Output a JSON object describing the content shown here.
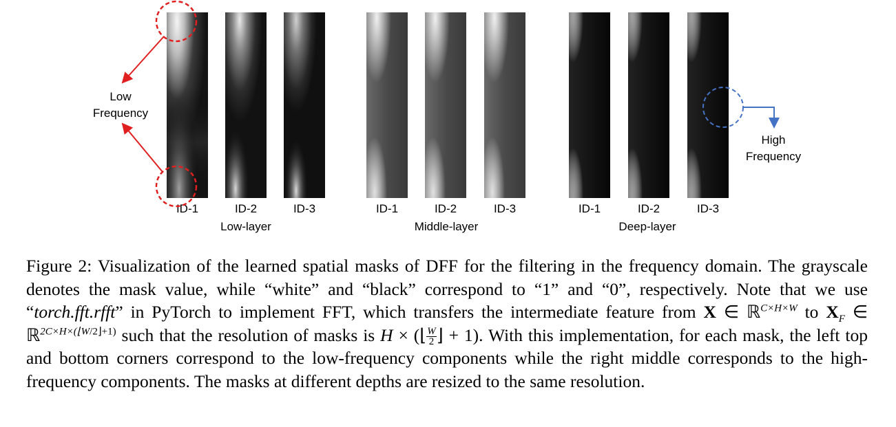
{
  "figure": {
    "groups": [
      {
        "label": "Low-layer",
        "masks": [
          {
            "id": "ID-1",
            "style": "low-1"
          },
          {
            "id": "ID-2",
            "style": "low-2"
          },
          {
            "id": "ID-3",
            "style": "low-3"
          }
        ]
      },
      {
        "label": "Middle-layer",
        "masks": [
          {
            "id": "ID-1",
            "style": "mid"
          },
          {
            "id": "ID-2",
            "style": "mid"
          },
          {
            "id": "ID-3",
            "style": "mid"
          }
        ]
      },
      {
        "label": "Deep-layer",
        "masks": [
          {
            "id": "ID-1",
            "style": "deep"
          },
          {
            "id": "ID-2",
            "style": "deep"
          },
          {
            "id": "ID-3",
            "style": "deep"
          }
        ]
      }
    ],
    "annotations": {
      "low": {
        "line1": "Low",
        "line2": "Frequency",
        "color": "#e02020"
      },
      "high": {
        "line1": "High",
        "line2": "Frequency",
        "color": "#4472c4"
      }
    }
  },
  "caption": {
    "figure_label": "Figure 2:",
    "sentence1": "Visualization of the learned spatial masks of DFF for the filtering in the frequency domain. The grayscale denotes the mask value, while “white” and “black” correspond to “1” and “0”, respectively. Note that we use “",
    "code": "torch.fft.rfft",
    "sentence2": "” in PyTorch to implement FFT, which transfers the intermediate feature from ",
    "sentence3": " such that the resolution of masks is ",
    "sentence4": ". With this implementation, for each mask, the left top and bottom corners correspond to the low-frequency components while the right middle corresponds to the high-frequency components. The masks at different depths are resized to the same resolution.",
    "math": {
      "X": "X",
      "in": "∈",
      "R": "ℝ",
      "dims": "C×H×W",
      "XF": "X",
      "F": "F",
      "dims2_prefix": "2C×H×(⌊",
      "W": "W",
      "two": "2",
      "dims2_suffix": "⌋+1)",
      "H": "H",
      "times_open": " × (⌊",
      "close": "⌋ + 1)"
    }
  }
}
